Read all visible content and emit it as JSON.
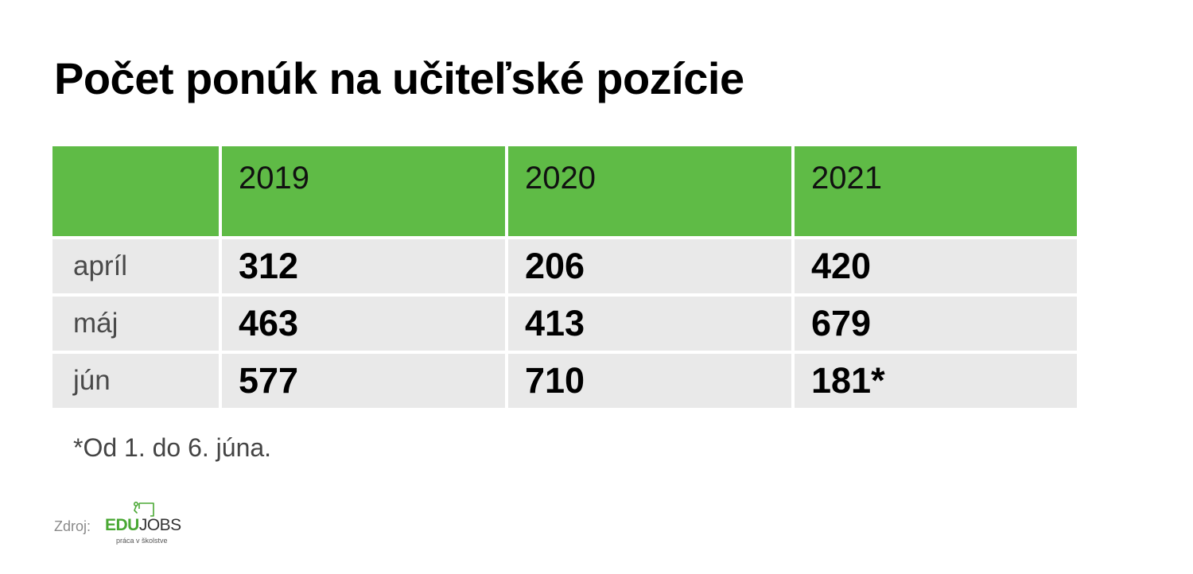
{
  "title": "Počet ponúk na učiteľské pozície",
  "chart_data": {
    "type": "table",
    "title": "Počet ponúk na učiteľské pozície",
    "columns": [
      "2019",
      "2020",
      "2021"
    ],
    "rows": [
      {
        "label": "apríl",
        "values": [
          "312",
          "206",
          "420"
        ]
      },
      {
        "label": "máj",
        "values": [
          "463",
          "413",
          "679"
        ]
      },
      {
        "label": "jún",
        "values": [
          "577",
          "710",
          "181*"
        ]
      }
    ],
    "header_color": "#5fbb46",
    "cell_color": "#e9e9e9"
  },
  "footnote": "*Od 1. do 6. júna.",
  "source": {
    "label": "Zdroj:",
    "logo": {
      "word_part1": "EDU",
      "word_part2": "JOBS",
      "tagline": "práca v školstve",
      "icon": "desk-person-icon"
    }
  }
}
